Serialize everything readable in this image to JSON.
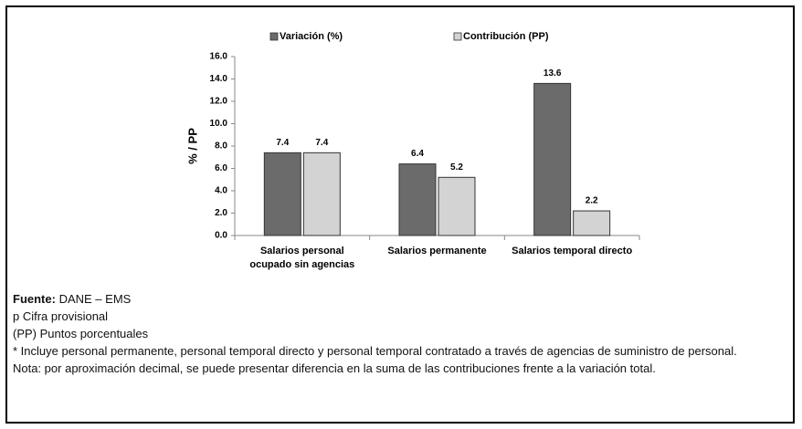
{
  "chart_data": {
    "type": "bar",
    "categories": [
      "Salarios personal ocupado sin agencias",
      "Salarios permanente",
      "Salarios temporal directo"
    ],
    "series": [
      {
        "name": "Variación (%)",
        "color": "#6b6b6b",
        "values": [
          7.4,
          6.4,
          13.6
        ]
      },
      {
        "name": "Contribución (PP)",
        "color": "#d3d3d3",
        "values": [
          7.4,
          5.2,
          2.2
        ]
      }
    ],
    "ylabel": "% / PP",
    "ylim": [
      0,
      16
    ],
    "yticks": [
      {
        "value": 0,
        "label": "0.0"
      },
      {
        "value": 2,
        "label": "2.0"
      },
      {
        "value": 4,
        "label": "4.0"
      },
      {
        "value": 6,
        "label": "6.0"
      },
      {
        "value": 8,
        "label": "8.0"
      },
      {
        "value": 10,
        "label": "10.0"
      },
      {
        "value": 12,
        "label": "12.0"
      },
      {
        "value": 14,
        "label": "14.0"
      },
      {
        "value": 16,
        "label": "16.0"
      }
    ],
    "legend": "top"
  },
  "notes": {
    "source_label": "Fuente:",
    "source": "DANE – EMS",
    "lines": [
      "p Cifra provisional",
      "(PP) Puntos porcentuales",
      "* Incluye personal permanente, personal temporal directo y personal temporal contratado a través de agencias de suministro de personal.",
      "Nota: por aproximación decimal, se puede presentar diferencia en la suma de las contribuciones frente a la variación total."
    ]
  }
}
